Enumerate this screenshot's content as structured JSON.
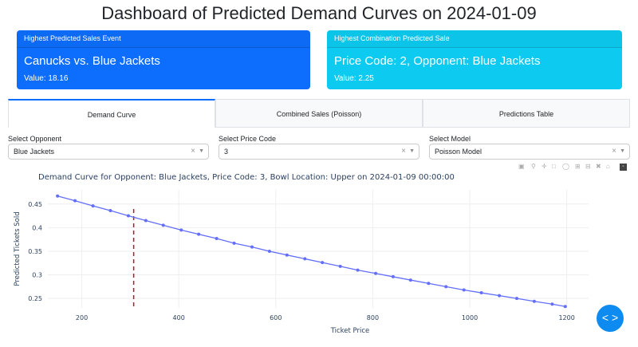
{
  "title": "Dashboard of Predicted Demand Curves on 2024-01-09",
  "cards": [
    {
      "header": "Highest Predicted Sales Event",
      "main": "Canucks vs. Blue Jackets",
      "value": "Value: 18.16"
    },
    {
      "header": "Highest Combination Predicted Sale",
      "main": "Price Code: 2, Opponent: Blue Jackets",
      "value": "Value: 2.25"
    }
  ],
  "tabs": [
    {
      "label": "Demand Curve",
      "active": true
    },
    {
      "label": "Combined Sales (Poisson)",
      "active": false
    },
    {
      "label": "Predictions Table",
      "active": false
    }
  ],
  "filters": [
    {
      "label": "Select Opponent",
      "value": "Blue Jackets"
    },
    {
      "label": "Select Price Code",
      "value": "3"
    },
    {
      "label": "Select Model",
      "value": "Poisson Model"
    }
  ],
  "icons": {
    "clear": "×",
    "caret": "▼",
    "fab": "< >",
    "modebar": [
      "camera-icon",
      "zoom-icon",
      "pan-icon",
      "box-select-icon",
      "lasso-icon",
      "zoom-in-icon",
      "zoom-out-icon",
      "autoscale-icon",
      "reset-axes-icon",
      "plotly-logo-icon"
    ]
  },
  "chart_data": {
    "type": "line",
    "title": "Demand Curve for Opponent: Blue Jackets, Price Code: 3, Bowl Location: Upper on 2024-01-09 00:00:00",
    "xlabel": "Ticket Price",
    "ylabel": "Predicted Tickets Sold",
    "xlim": [
      130,
      1245
    ],
    "ylim": [
      0.23,
      0.48
    ],
    "x_ticks": [
      200,
      400,
      600,
      800,
      1000,
      1200
    ],
    "y_ticks": [
      0.25,
      0.3,
      0.35,
      0.4,
      0.45
    ],
    "y_tick_labels": [
      "0.25",
      "0.3",
      "0.35",
      "0.4",
      "0.45"
    ],
    "grid": true,
    "series": [
      {
        "color": "#636efa",
        "x": [
          150,
          186,
          223,
          259,
          296,
          332,
          368,
          405,
          441,
          478,
          514,
          551,
          587,
          623,
          660,
          696,
          733,
          769,
          806,
          842,
          878,
          915,
          951,
          988,
          1024,
          1061,
          1097,
          1133,
          1170,
          1197
        ],
        "y": [
          0.467,
          0.457,
          0.446,
          0.436,
          0.425,
          0.415,
          0.405,
          0.395,
          0.386,
          0.377,
          0.367,
          0.359,
          0.35,
          0.342,
          0.334,
          0.326,
          0.318,
          0.31,
          0.303,
          0.296,
          0.289,
          0.282,
          0.275,
          0.268,
          0.262,
          0.256,
          0.25,
          0.244,
          0.238,
          0.233
        ]
      }
    ],
    "reference_line": {
      "x": 307,
      "color": "#b2182b",
      "style": "dashed"
    }
  }
}
